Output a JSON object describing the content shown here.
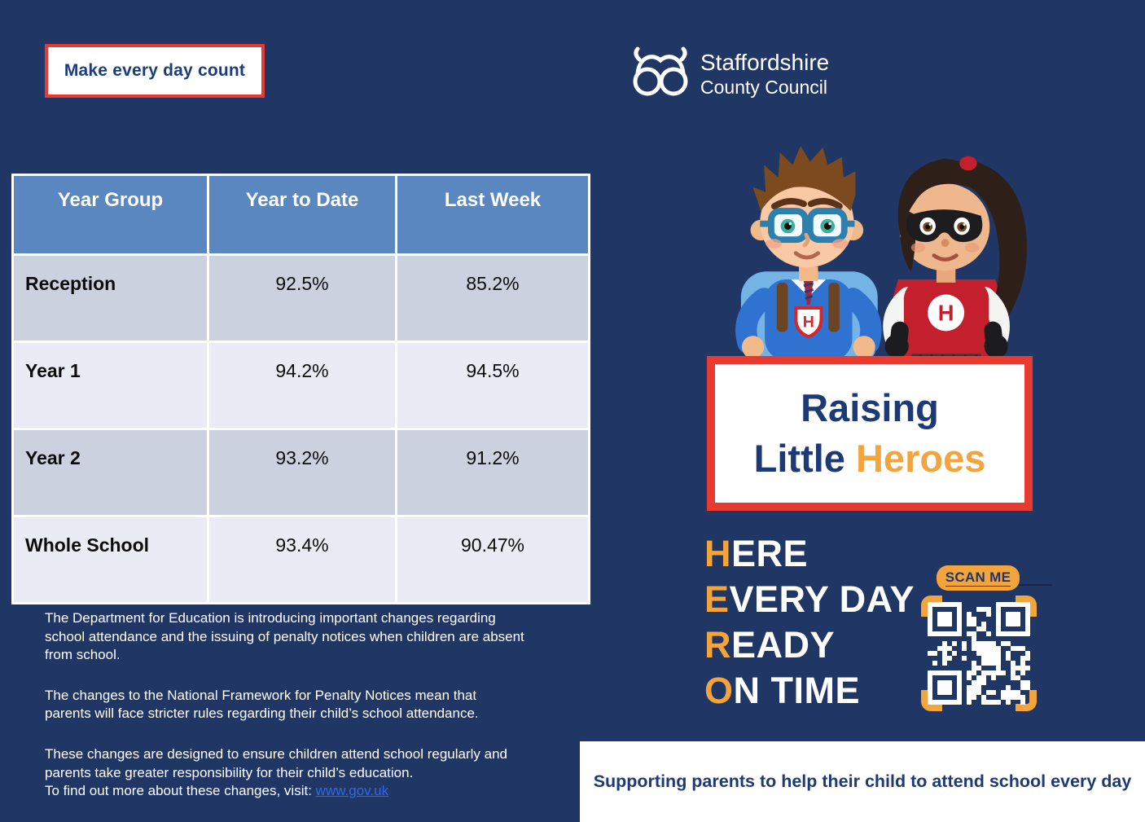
{
  "flyer": {
    "top_badge": "Make every day count",
    "logo": {
      "name_line1": "Staffordshire",
      "name_line2": "County Council"
    },
    "attendance_table": {
      "headers": [
        "Year Group",
        "Year to Date",
        "Last Week"
      ],
      "rows": [
        {
          "group": "Reception",
          "year_to_date": "92.5%",
          "last_week": "85.2%"
        },
        {
          "group": "Year 1",
          "year_to_date": "94.2%",
          "last_week": "94.5%"
        },
        {
          "group": "Year 2",
          "year_to_date": "93.2%",
          "last_week": "91.2%"
        },
        {
          "group": "Whole School",
          "year_to_date": "93.4%",
          "last_week": "90.47%"
        }
      ]
    },
    "paragraphs": {
      "p1": "The Department for Education is introducing important changes regarding school attendance and the issuing of penalty notices when children are absent from school.",
      "p2": "The changes to the National Framework for Penalty Notices mean that parents will face stricter rules regarding their child’s school attendance.",
      "p3": "These changes are designed to ensure children attend school regularly and parents take greater responsibility for their child’s education.",
      "p3_link_prefix": "To find out more about these changes, visit: ",
      "link": "www.gov.uk"
    },
    "hero_box": {
      "line1": "Raising",
      "line2_word1": "Little ",
      "line2_word2": "Heroes"
    },
    "acrostic": {
      "lines": [
        {
          "initial": "H",
          "rest": "ERE"
        },
        {
          "initial": "E",
          "rest": "VERY DAY"
        },
        {
          "initial": "R",
          "rest": "EADY"
        },
        {
          "initial": "O",
          "rest": "N TIME"
        }
      ]
    },
    "scan_label": "SCAN ME",
    "footer": "Supporting parents to help their child to attend school every day",
    "illustration": {
      "badge_letter": "H"
    },
    "colors": {
      "background_navy": "#203665",
      "accent_red": "#e83a30",
      "accent_orange": "#f4a43c",
      "table_header_blue": "#5b87c0",
      "table_row_dark": "#ccd1e0",
      "table_row_light": "#e9ecf4",
      "link_blue": "#2b6bea",
      "heading_navy": "#1e3a75"
    }
  }
}
